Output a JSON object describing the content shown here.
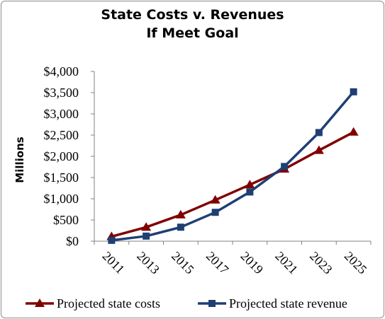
{
  "chart_data": {
    "type": "line",
    "title_line1": "State Costs v. Revenues",
    "title_line2": "If Meet Goal",
    "xlabel": "",
    "ylabel": "Millions",
    "categories": [
      "2011",
      "2013",
      "2015",
      "2017",
      "2019",
      "2021",
      "2023",
      "2025"
    ],
    "y_tick_labels": [
      "$0",
      "$500",
      "$1,000",
      "$1,500",
      "$2,000",
      "$2,500",
      "$3,000",
      "$3,500",
      "$4,000"
    ],
    "ylim": [
      0,
      4000
    ],
    "grid": false,
    "legend_position": "bottom",
    "series": [
      {
        "name": "Projected state costs",
        "marker": "triangle",
        "color": "#800000",
        "values": [
          110,
          330,
          620,
          970,
          1330,
          1700,
          2140,
          2570
        ]
      },
      {
        "name": "Projected state revenue",
        "marker": "square",
        "color": "#1f3f73",
        "values": [
          20,
          120,
          330,
          680,
          1160,
          1760,
          2560,
          3520
        ]
      }
    ]
  }
}
